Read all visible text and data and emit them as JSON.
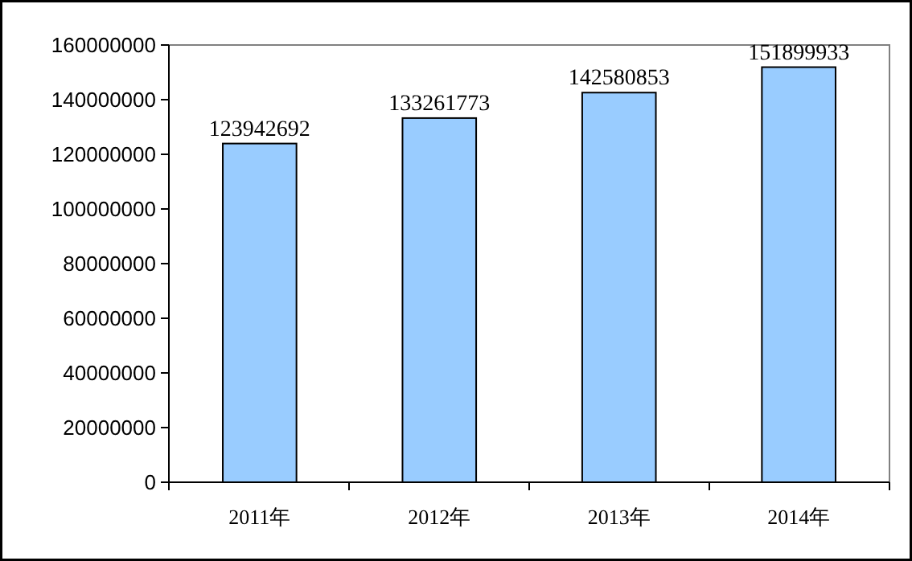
{
  "chart_data": {
    "type": "bar",
    "categories": [
      "2011年",
      "2012年",
      "2013年",
      "2014年"
    ],
    "values": [
      123942692,
      133261773,
      142580853,
      151899933
    ],
    "color": "#99ccff",
    "ylim": [
      0,
      160000000
    ],
    "yticks": [
      0,
      20000000,
      40000000,
      60000000,
      80000000,
      100000000,
      120000000,
      140000000,
      160000000
    ],
    "data_labels": true
  }
}
